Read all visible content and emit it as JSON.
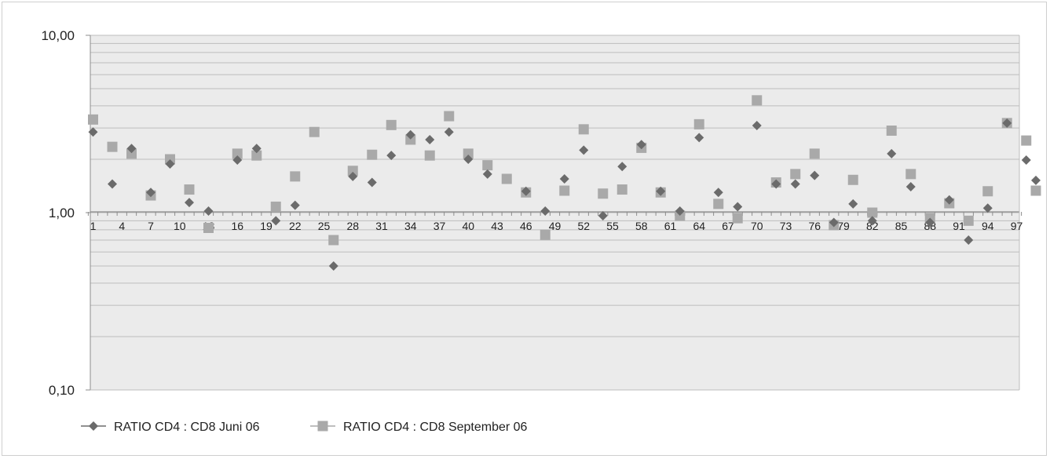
{
  "chart_data": {
    "type": "scatter",
    "y_scale": "log",
    "ylim": [
      0.1,
      10
    ],
    "y_ticks": [
      {
        "value": 10,
        "label": "10,00"
      },
      {
        "value": 1,
        "label": "1,00"
      },
      {
        "value": 0.1,
        "label": "0,10"
      }
    ],
    "x_range": [
      1,
      98
    ],
    "x_tick_labels": [
      1,
      4,
      7,
      10,
      13,
      16,
      19,
      22,
      25,
      28,
      31,
      34,
      37,
      40,
      43,
      46,
      49,
      52,
      55,
      58,
      61,
      64,
      67,
      70,
      73,
      76,
      79,
      82,
      85,
      88,
      91,
      94,
      97
    ],
    "grid": true,
    "legend_position": "bottom-left",
    "colors": {
      "series_juni": "#6b6b6b",
      "series_september": "#a9a9a9",
      "plot_background": "#ebebeb",
      "gridline": "#bdbdbd",
      "axis": "#8c8c8c"
    },
    "series": [
      {
        "name": "RATIO CD4 : CD8 Juni 06",
        "marker": "diamond",
        "points": [
          [
            1,
            2.85
          ],
          [
            3,
            1.45
          ],
          [
            5,
            2.3
          ],
          [
            7,
            1.3
          ],
          [
            9,
            1.88
          ],
          [
            11,
            1.14
          ],
          [
            13,
            1.02
          ],
          [
            16,
            1.98
          ],
          [
            18,
            2.3
          ],
          [
            20,
            0.9
          ],
          [
            22,
            1.1
          ],
          [
            26,
            0.5
          ],
          [
            28,
            1.6
          ],
          [
            30,
            1.48
          ],
          [
            32,
            2.1
          ],
          [
            34,
            2.75
          ],
          [
            36,
            2.58
          ],
          [
            38,
            2.85
          ],
          [
            40,
            2.0
          ],
          [
            42,
            1.65
          ],
          [
            46,
            1.32
          ],
          [
            48,
            1.02
          ],
          [
            50,
            1.55
          ],
          [
            52,
            2.25
          ],
          [
            54,
            0.96
          ],
          [
            56,
            1.82
          ],
          [
            58,
            2.42
          ],
          [
            60,
            1.32
          ],
          [
            62,
            1.02
          ],
          [
            64,
            2.65
          ],
          [
            66,
            1.3
          ],
          [
            68,
            1.08
          ],
          [
            70,
            3.1
          ],
          [
            72,
            1.45
          ],
          [
            74,
            1.45
          ],
          [
            76,
            1.62
          ],
          [
            78,
            0.88
          ],
          [
            80,
            1.12
          ],
          [
            82,
            0.9
          ],
          [
            84,
            2.15
          ],
          [
            86,
            1.4
          ],
          [
            88,
            0.88
          ],
          [
            90,
            1.18
          ],
          [
            92,
            0.7
          ],
          [
            94,
            1.06
          ],
          [
            96,
            3.2
          ],
          [
            98,
            1.98
          ],
          [
            99,
            1.52
          ]
        ]
      },
      {
        "name": "RATIO CD4 : CD8 September 06",
        "marker": "square",
        "points": [
          [
            1,
            3.35
          ],
          [
            3,
            2.35
          ],
          [
            5,
            2.15
          ],
          [
            7,
            1.25
          ],
          [
            9,
            2.0
          ],
          [
            11,
            1.35
          ],
          [
            13,
            0.82
          ],
          [
            16,
            2.15
          ],
          [
            18,
            2.1
          ],
          [
            20,
            1.08
          ],
          [
            22,
            1.6
          ],
          [
            24,
            2.85
          ],
          [
            26,
            0.7
          ],
          [
            28,
            1.72
          ],
          [
            30,
            2.12
          ],
          [
            32,
            3.12
          ],
          [
            34,
            2.58
          ],
          [
            36,
            2.1
          ],
          [
            38,
            3.5
          ],
          [
            40,
            2.15
          ],
          [
            42,
            1.85
          ],
          [
            44,
            1.55
          ],
          [
            46,
            1.3
          ],
          [
            48,
            0.75
          ],
          [
            50,
            1.33
          ],
          [
            52,
            2.95
          ],
          [
            54,
            1.28
          ],
          [
            56,
            1.35
          ],
          [
            58,
            2.32
          ],
          [
            60,
            1.3
          ],
          [
            62,
            0.96
          ],
          [
            64,
            3.15
          ],
          [
            66,
            1.12
          ],
          [
            68,
            0.93
          ],
          [
            70,
            4.3
          ],
          [
            72,
            1.48
          ],
          [
            74,
            1.65
          ],
          [
            76,
            2.15
          ],
          [
            78,
            0.85
          ],
          [
            80,
            1.53
          ],
          [
            82,
            1.0
          ],
          [
            84,
            2.9
          ],
          [
            86,
            1.65
          ],
          [
            88,
            0.93
          ],
          [
            90,
            1.13
          ],
          [
            92,
            0.9
          ],
          [
            94,
            1.32
          ],
          [
            96,
            3.2
          ],
          [
            98,
            2.55
          ],
          [
            99,
            1.33
          ]
        ]
      }
    ]
  }
}
